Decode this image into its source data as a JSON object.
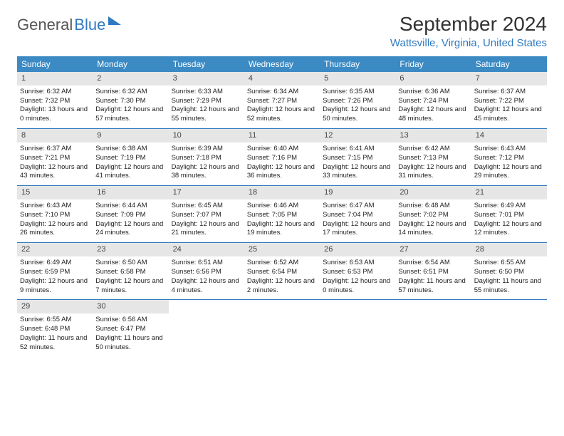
{
  "brand": {
    "part1": "General",
    "part2": "Blue"
  },
  "title": "September 2024",
  "location": "Wattsville, Virginia, United States",
  "colors": {
    "header_bg": "#3b8ac4",
    "accent": "#2f7ac0",
    "daynum_bg": "#e6e6e6"
  },
  "weekdays": [
    "Sunday",
    "Monday",
    "Tuesday",
    "Wednesday",
    "Thursday",
    "Friday",
    "Saturday"
  ],
  "days": [
    {
      "n": 1,
      "sr": "6:32 AM",
      "ss": "7:32 PM",
      "dl": "13 hours and 0 minutes."
    },
    {
      "n": 2,
      "sr": "6:32 AM",
      "ss": "7:30 PM",
      "dl": "12 hours and 57 minutes."
    },
    {
      "n": 3,
      "sr": "6:33 AM",
      "ss": "7:29 PM",
      "dl": "12 hours and 55 minutes."
    },
    {
      "n": 4,
      "sr": "6:34 AM",
      "ss": "7:27 PM",
      "dl": "12 hours and 52 minutes."
    },
    {
      "n": 5,
      "sr": "6:35 AM",
      "ss": "7:26 PM",
      "dl": "12 hours and 50 minutes."
    },
    {
      "n": 6,
      "sr": "6:36 AM",
      "ss": "7:24 PM",
      "dl": "12 hours and 48 minutes."
    },
    {
      "n": 7,
      "sr": "6:37 AM",
      "ss": "7:22 PM",
      "dl": "12 hours and 45 minutes."
    },
    {
      "n": 8,
      "sr": "6:37 AM",
      "ss": "7:21 PM",
      "dl": "12 hours and 43 minutes."
    },
    {
      "n": 9,
      "sr": "6:38 AM",
      "ss": "7:19 PM",
      "dl": "12 hours and 41 minutes."
    },
    {
      "n": 10,
      "sr": "6:39 AM",
      "ss": "7:18 PM",
      "dl": "12 hours and 38 minutes."
    },
    {
      "n": 11,
      "sr": "6:40 AM",
      "ss": "7:16 PM",
      "dl": "12 hours and 36 minutes."
    },
    {
      "n": 12,
      "sr": "6:41 AM",
      "ss": "7:15 PM",
      "dl": "12 hours and 33 minutes."
    },
    {
      "n": 13,
      "sr": "6:42 AM",
      "ss": "7:13 PM",
      "dl": "12 hours and 31 minutes."
    },
    {
      "n": 14,
      "sr": "6:43 AM",
      "ss": "7:12 PM",
      "dl": "12 hours and 29 minutes."
    },
    {
      "n": 15,
      "sr": "6:43 AM",
      "ss": "7:10 PM",
      "dl": "12 hours and 26 minutes."
    },
    {
      "n": 16,
      "sr": "6:44 AM",
      "ss": "7:09 PM",
      "dl": "12 hours and 24 minutes."
    },
    {
      "n": 17,
      "sr": "6:45 AM",
      "ss": "7:07 PM",
      "dl": "12 hours and 21 minutes."
    },
    {
      "n": 18,
      "sr": "6:46 AM",
      "ss": "7:05 PM",
      "dl": "12 hours and 19 minutes."
    },
    {
      "n": 19,
      "sr": "6:47 AM",
      "ss": "7:04 PM",
      "dl": "12 hours and 17 minutes."
    },
    {
      "n": 20,
      "sr": "6:48 AM",
      "ss": "7:02 PM",
      "dl": "12 hours and 14 minutes."
    },
    {
      "n": 21,
      "sr": "6:49 AM",
      "ss": "7:01 PM",
      "dl": "12 hours and 12 minutes."
    },
    {
      "n": 22,
      "sr": "6:49 AM",
      "ss": "6:59 PM",
      "dl": "12 hours and 9 minutes."
    },
    {
      "n": 23,
      "sr": "6:50 AM",
      "ss": "6:58 PM",
      "dl": "12 hours and 7 minutes."
    },
    {
      "n": 24,
      "sr": "6:51 AM",
      "ss": "6:56 PM",
      "dl": "12 hours and 4 minutes."
    },
    {
      "n": 25,
      "sr": "6:52 AM",
      "ss": "6:54 PM",
      "dl": "12 hours and 2 minutes."
    },
    {
      "n": 26,
      "sr": "6:53 AM",
      "ss": "6:53 PM",
      "dl": "12 hours and 0 minutes."
    },
    {
      "n": 27,
      "sr": "6:54 AM",
      "ss": "6:51 PM",
      "dl": "11 hours and 57 minutes."
    },
    {
      "n": 28,
      "sr": "6:55 AM",
      "ss": "6:50 PM",
      "dl": "11 hours and 55 minutes."
    },
    {
      "n": 29,
      "sr": "6:55 AM",
      "ss": "6:48 PM",
      "dl": "11 hours and 52 minutes."
    },
    {
      "n": 30,
      "sr": "6:56 AM",
      "ss": "6:47 PM",
      "dl": "11 hours and 50 minutes."
    }
  ],
  "labels": {
    "sunrise": "Sunrise:",
    "sunset": "Sunset:",
    "daylight": "Daylight:"
  },
  "layout": {
    "start_weekday": 0,
    "total_cells": 35
  }
}
